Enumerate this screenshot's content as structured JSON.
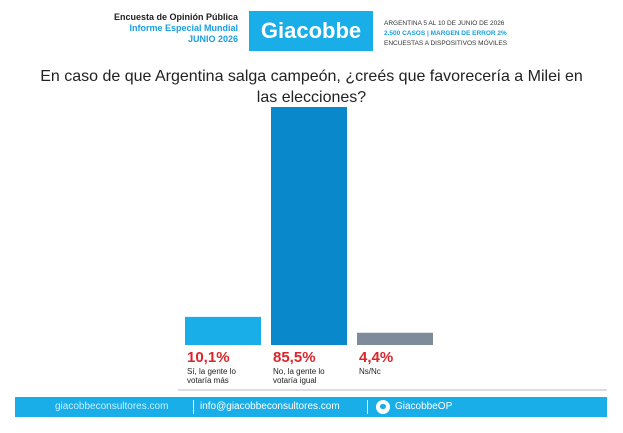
{
  "chart_data": {
    "type": "bar",
    "header": {
      "left": [
        "Encuesta de Opinión Pública",
        "Informe Especial Mundial",
        "JUNIO 2026"
      ],
      "logo": "Giacobbe",
      "right": [
        "ARGENTINA 5 AL 10 DE JUNIO DE 2026",
        "2.500 CASOS | MARGEN DE ERROR 2%",
        "ENCUESTAS A DISPOSITIVOS MÓVILES"
      ]
    },
    "title": "En caso de que Argentina salga campeón, ¿creés que favorecería a Milei en las elecciones?",
    "categories": [
      "Sí, la gente lo votaría más",
      "No, la gente lo votaría igual",
      "Ns/Nc"
    ],
    "values": [
      10.1,
      85.5,
      4.4
    ],
    "value_labels": [
      "10,1%",
      "85,5%",
      "4,4%"
    ],
    "colors": [
      "#1aaee8",
      "#0a88cc",
      "#7d8c98"
    ],
    "footer": [
      "giacobbeconsultores.com",
      "info@giacobbeconsultores.com",
      "GiacobbeOP"
    ]
  }
}
